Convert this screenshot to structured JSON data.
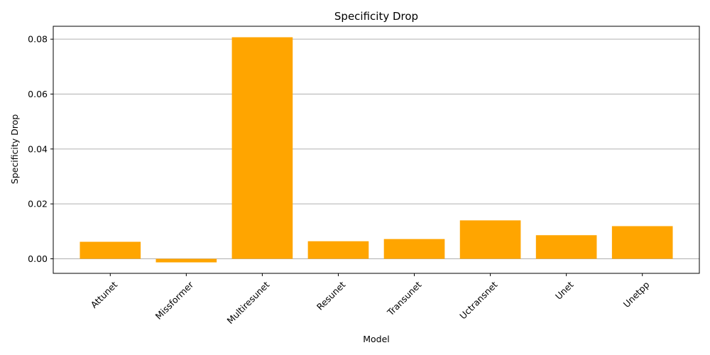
{
  "chart_data": {
    "type": "bar",
    "title": "Specificity Drop",
    "xlabel": "Model",
    "ylabel": "Specificity Drop",
    "categories": [
      "Attunet",
      "Missformer",
      "Multiresunet",
      "Resunet",
      "Transunet",
      "Uctransnet",
      "Unet",
      "Unetpp"
    ],
    "values": [
      0.0062,
      -0.0013,
      0.0807,
      0.0064,
      0.0072,
      0.014,
      0.0086,
      0.0119
    ],
    "ylim": [
      -0.0053,
      0.0847
    ],
    "yticks": [
      0.0,
      0.02,
      0.04,
      0.06,
      0.08
    ],
    "ytick_labels": [
      "0.00",
      "0.02",
      "0.04",
      "0.06",
      "0.08"
    ],
    "bar_color": "#ffa500",
    "grid": "y-axis horizontal lines",
    "grid_color": "#b0b0b0",
    "x_tick_rotation": 45
  }
}
